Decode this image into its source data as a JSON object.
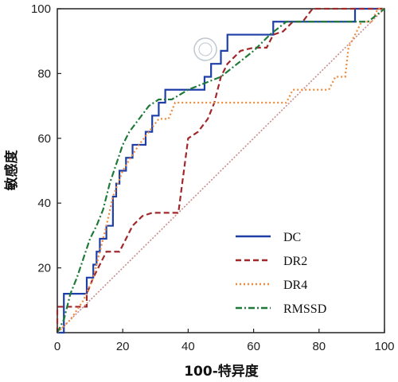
{
  "chart_data": {
    "type": "line",
    "title": "",
    "xlabel": "100-特异度",
    "ylabel": "敏感度",
    "xlim": [
      0,
      100
    ],
    "ylim": [
      0,
      100
    ],
    "xticks": [
      0,
      20,
      40,
      60,
      80,
      100
    ],
    "yticks": [
      20,
      40,
      60,
      80,
      100
    ],
    "grid": false,
    "legend_position": "bottom-right",
    "reference_line": {
      "x": [
        0,
        100
      ],
      "y": [
        0,
        100
      ],
      "color": "#c98b8b"
    },
    "series": [
      {
        "name": "DC",
        "color": "#1f3fa8",
        "dash": "solid",
        "x": [
          0,
          2,
          2,
          9,
          9,
          11,
          11,
          12,
          12,
          13,
          13,
          15,
          15,
          17,
          17,
          18,
          18,
          19,
          19,
          21,
          21,
          23,
          23,
          27,
          27,
          29,
          29,
          31,
          31,
          33,
          33,
          45,
          45,
          47,
          47,
          50,
          50,
          52,
          52,
          66,
          66,
          91,
          91,
          98,
          98,
          100
        ],
        "y": [
          0,
          0,
          12,
          12,
          17,
          17,
          21,
          21,
          25,
          25,
          29,
          29,
          33,
          33,
          42,
          42,
          46,
          46,
          50,
          50,
          54,
          54,
          58,
          58,
          62,
          62,
          67,
          67,
          71,
          71,
          75,
          75,
          79,
          79,
          83,
          83,
          87,
          87,
          92,
          92,
          96,
          96,
          100,
          100,
          100,
          100
        ]
      },
      {
        "name": "DR2",
        "color": "#a0282a",
        "dash": "dashed",
        "x": [
          0,
          0,
          9,
          9,
          11,
          13,
          15,
          17,
          19,
          21,
          23,
          26,
          29,
          33,
          37,
          40,
          43,
          46,
          48,
          50,
          52,
          56,
          60,
          64,
          66,
          69,
          72,
          75,
          78,
          82,
          86,
          90,
          93,
          95,
          100
        ],
        "y": [
          0,
          8,
          8,
          12,
          17,
          21,
          25,
          25,
          25,
          29,
          33,
          36,
          37,
          37,
          37,
          60,
          62,
          66,
          71,
          79,
          83,
          87,
          88,
          88,
          92,
          93,
          96,
          96,
          100,
          100,
          100,
          100,
          100,
          100,
          100
        ]
      },
      {
        "name": "DR4",
        "color": "#f08a3a",
        "dash": "dotted",
        "x": [
          0,
          4,
          8,
          11,
          13,
          15,
          17,
          20,
          23,
          25,
          28,
          31,
          34,
          36,
          40,
          45,
          50,
          55,
          60,
          65,
          70,
          72,
          76,
          80,
          83,
          85,
          88,
          89,
          93,
          96,
          98,
          100
        ],
        "y": [
          0,
          4,
          10,
          17,
          25,
          33,
          42,
          50,
          55,
          58,
          62,
          66,
          66,
          71,
          71,
          71,
          71,
          71,
          71,
          71,
          71,
          75,
          75,
          75,
          75,
          79,
          79,
          88,
          96,
          96,
          100,
          100
        ]
      },
      {
        "name": "RMSSD",
        "color": "#1f7a3a",
        "dash": "dash-dot",
        "x": [
          0,
          2,
          4,
          6,
          8,
          10,
          12,
          14,
          16,
          18,
          20,
          22,
          25,
          28,
          31,
          35,
          40,
          45,
          50,
          55,
          60,
          65,
          70,
          75,
          80,
          85,
          90,
          95,
          100
        ],
        "y": [
          0,
          4,
          12,
          17,
          23,
          29,
          33,
          38,
          46,
          52,
          58,
          62,
          66,
          70,
          72,
          72,
          75,
          77,
          79,
          83,
          87,
          92,
          96,
          96,
          96,
          96,
          96,
          96,
          100
        ]
      }
    ]
  }
}
